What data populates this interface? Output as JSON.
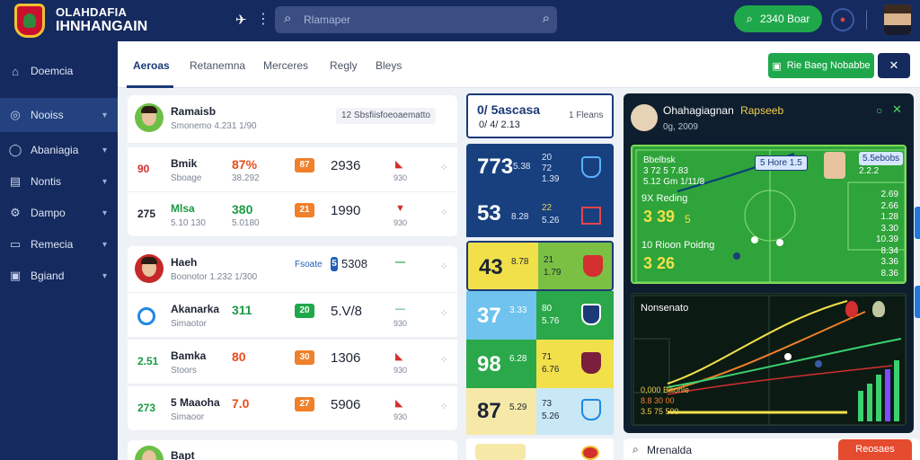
{
  "app": {
    "brand_line1": "OLAHDAFIA",
    "brand_line2": "IHNHANGAIN",
    "search_placeholder": "Rlamaper",
    "cta_label": "2340 Boar"
  },
  "sidebar": {
    "items": [
      {
        "label": "Doemcia",
        "icon": "bank-icon"
      },
      {
        "label": "Nooiss",
        "icon": "circle-icon",
        "active": true
      },
      {
        "label": "Abaniagia",
        "icon": "globe-icon"
      },
      {
        "label": "Nontis",
        "icon": "note-icon"
      },
      {
        "label": "Dampo",
        "icon": "gear-icon"
      },
      {
        "label": "Remecia",
        "icon": "box-icon"
      },
      {
        "label": "Bgiand",
        "icon": "chart-icon"
      }
    ]
  },
  "tabs": [
    {
      "label": "Aeroas",
      "active": true
    },
    {
      "label": "Retanemna"
    },
    {
      "label": "Merceres"
    },
    {
      "label": "Regly"
    },
    {
      "label": "Bleys"
    }
  ],
  "toolbar": {
    "primary_label": "Rie Baeg Nobabbe",
    "close_symbol": "✕"
  },
  "players": {
    "header_a": {
      "name": "Ramaisb",
      "sub": "Smonemo 4.231 1/90",
      "tag": "12 Sbsfiisfoeoaematto"
    },
    "rows_a": [
      {
        "rank": "90",
        "name": "Bmik",
        "sub": "Sboage",
        "pct": "87%",
        "pct_sub": "38.292",
        "chip": "87",
        "score": "2936",
        "arrow_sub": "930"
      },
      {
        "rank": "275",
        "name": "Mlsa",
        "sub": "5.10 130",
        "pct": "380",
        "pct_sub": "5.0180",
        "chip": "21",
        "score": "1990",
        "arrow_sub": "930"
      }
    ],
    "header_b": {
      "name": "Haeh",
      "sub": "Boonotor 1.232 1/300",
      "link": "Fsoate",
      "chip": "5",
      "score": "5308"
    },
    "rows_b": [
      {
        "rank": "",
        "name": "Akanarka",
        "sub": "Simaotor",
        "pct": "311",
        "pct_sub": "",
        "chip": "20",
        "score": "5.V/8",
        "arrow_sub": "930"
      },
      {
        "rank": "2.51",
        "name": "Bamka",
        "sub": "Stoors",
        "pct": "80",
        "pct_sub": "",
        "chip": "30",
        "score": "1306",
        "arrow_sub": "930"
      },
      {
        "rank": "273",
        "name": "5 Maaoha",
        "sub": "Simaoor",
        "pct": "7.0",
        "pct_sub": "",
        "chip": "27",
        "score": "5906",
        "arrow_sub": "930"
      }
    ],
    "last": {
      "name": "Bapt",
      "sub": ""
    }
  },
  "scoreboard": {
    "header_title": "0/ 5ascasa",
    "header_sub": "0/ 4/ 2.13",
    "header_side": "1 Fleans",
    "tiles": [
      {
        "big": "773",
        "mid": "5.38",
        "a": "20",
        "b": "72",
        "c": "1.39"
      },
      {
        "big": "53",
        "mid": "8.28",
        "a": "22",
        "b": "5.26"
      },
      {
        "big": "43",
        "mid": "8.78",
        "a": "21",
        "b": "1.79"
      },
      {
        "big": "37",
        "mid": "3.33",
        "a": "80",
        "b": "5.76"
      },
      {
        "big": "98",
        "mid": "6.28",
        "a": "71",
        "b": "6.76"
      },
      {
        "big": "87",
        "mid": "5.29",
        "a": "73",
        "b": "5.26"
      }
    ]
  },
  "right_panel": {
    "title_a": "Ohahagiagnan",
    "title_b": "Rapseeb",
    "subtitle": "0g, 2009",
    "pitch": {
      "label1": "Bbelbsk",
      "label2": "3 72 5 7.83",
      "label3": "5.12 Gm 1/11/8",
      "badge": "5 Hore 1.5",
      "right_badge": "5.5ebobs",
      "right_num": "2.2.2",
      "row1_label": "9X Reding",
      "row1_val": "3 39",
      "row1_suffix": "5",
      "row2_label": "10 Rioon Poidng",
      "row2_val": "3 26",
      "side_nums": [
        "2.69",
        "2.66",
        "1.28",
        "3.30",
        "10.39",
        "8.34",
        "3.36",
        "8.36"
      ]
    },
    "chart_title": "Nonsenato",
    "chart_legend": "0,000 Bilionle",
    "chart_legend2": "8.8 30 00",
    "chart_legend3": "3.5 75 500"
  },
  "bottom": {
    "search_label": "Mrenalda",
    "button_label": "Reosaes"
  },
  "colors": {
    "navy": "#152a5e",
    "green": "#1fa84b",
    "orange": "#f0802a",
    "red": "#e54b2f"
  }
}
